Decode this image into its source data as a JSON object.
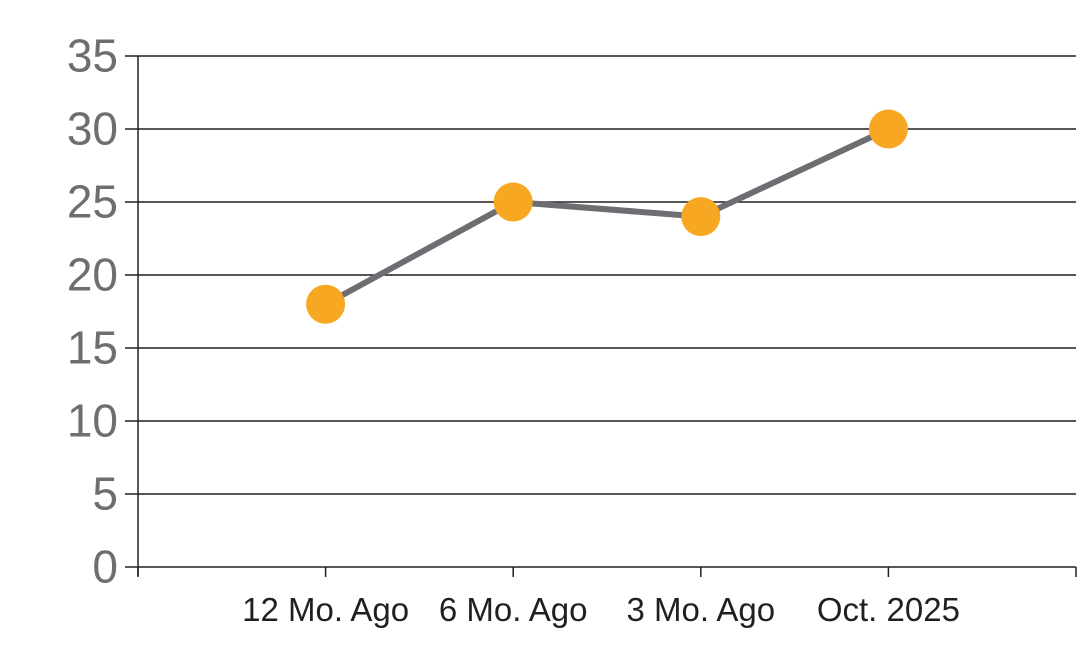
{
  "chart_data": {
    "type": "line",
    "categories": [
      "12 Mo. Ago",
      "6 Mo. Ago",
      "3 Mo. Ago",
      "Oct. 2025"
    ],
    "values": [
      18,
      25,
      24,
      30
    ],
    "title": "",
    "xlabel": "",
    "ylabel": "",
    "ylim": [
      0,
      35
    ],
    "ytick_step": 5,
    "y_tick_labels": [
      "0",
      "5",
      "10",
      "15",
      "20",
      "25",
      "30",
      "35"
    ],
    "grid": true,
    "legend": "none",
    "marker_shape": "circle",
    "colors": {
      "marker": "#F7A721",
      "line": "#6D6E71",
      "grid": "#231F20",
      "axis": "#231F20",
      "y_tick_label": "#6D6E71",
      "x_tick_label": "#231F20",
      "background": "#FFFFFF"
    }
  }
}
